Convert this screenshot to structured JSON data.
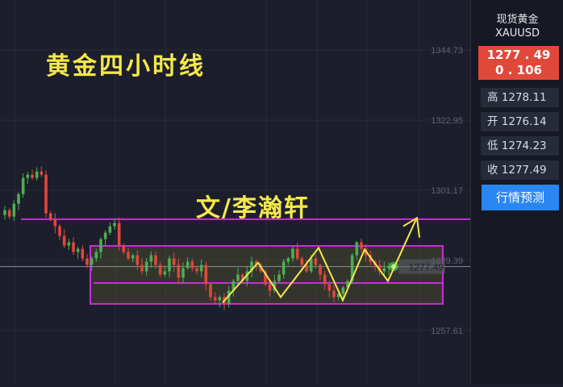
{
  "chart_data": {
    "type": "candlestick",
    "title": "黄金四小时线",
    "annotation_author": "文/李瀚轩",
    "y_ticks": [
      "1344.73",
      "1322.95",
      "1301.17",
      "1279.39",
      "1257.61"
    ],
    "ylim": [
      1253,
      1362
    ],
    "grid": true,
    "closes": [
      1295,
      1293,
      1297,
      1300,
      1305,
      1306,
      1305,
      1307,
      1306,
      1294,
      1292,
      1290,
      1287,
      1284,
      1285,
      1282,
      1283,
      1280,
      1278,
      1280,
      1282,
      1286,
      1288,
      1290,
      1291,
      1284,
      1282,
      1280,
      1281,
      1278,
      1276,
      1279,
      1281,
      1278,
      1275,
      1276,
      1280,
      1278,
      1274,
      1277,
      1279,
      1277,
      1276,
      1278,
      1272,
      1268,
      1267,
      1268,
      1266,
      1270,
      1273,
      1275,
      1273,
      1276,
      1279,
      1278,
      1276,
      1272,
      1270,
      1273,
      1275,
      1279,
      1280,
      1283,
      1280,
      1278,
      1276,
      1280,
      1278,
      1275,
      1272,
      1270,
      1268,
      1269,
      1271,
      1273,
      1281,
      1285,
      1283,
      1281,
      1279,
      1278,
      1276,
      1277,
      1277.49
    ],
    "current_price_label": "1277.49",
    "resistance_line": 1292.2,
    "range_box": {
      "top": 1283.9,
      "bottom": 1265.9,
      "mid_line": 1272.4
    },
    "up_color": "#4caf50",
    "down_color": "#e0483a",
    "drawing_color": "#c42fd6",
    "annotation_color": "#f5e84a"
  },
  "panel": {
    "name": "现货黄金",
    "symbol": "XAUUSD",
    "price": "1277 . 49",
    "change": "0 . 106",
    "high": "高 1278.11",
    "open": "开 1276.14",
    "low": "低 1274.23",
    "close": "收 1277.49",
    "predict_button": "行情预测"
  }
}
